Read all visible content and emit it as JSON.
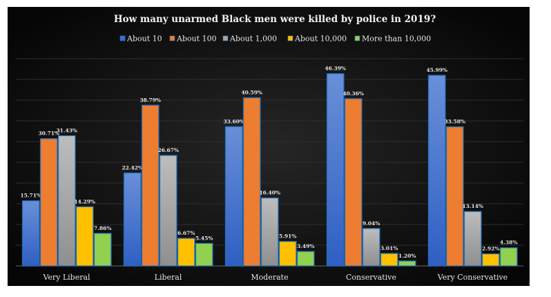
{
  "chart_data": {
    "type": "bar",
    "title": "How many unarmed Black men were killed by police in 2019?",
    "categories": [
      "Very Liberal",
      "Liberal",
      "Moderate",
      "Conservative",
      "Very Conservative"
    ],
    "series": [
      {
        "name": "About 10",
        "color": "#3a6fd0",
        "values": [
          15.71,
          22.42,
          33.6,
          46.39,
          45.99
        ],
        "labels": [
          "15.71%",
          "22.42%",
          "33.60%",
          "46.39%",
          "45.99%"
        ]
      },
      {
        "name": "About 100",
        "color": "#ed7d31",
        "values": [
          30.71,
          38.79,
          40.59,
          40.36,
          33.58
        ],
        "labels": [
          "30.71%",
          "38.79%",
          "40.59%",
          "40.36%",
          "33.58%"
        ]
      },
      {
        "name": "About 1,000",
        "color": "#a5a5a5",
        "values": [
          31.43,
          26.67,
          16.4,
          9.04,
          13.14
        ],
        "labels": [
          "31.43%",
          "26.67%",
          "16.40%",
          "9.04%",
          "13.14%"
        ]
      },
      {
        "name": "About 10,000",
        "color": "#ffc000",
        "values": [
          14.29,
          6.67,
          5.91,
          3.01,
          2.92
        ],
        "labels": [
          "14.29%",
          "6.67%",
          "5.91%",
          "3.01%",
          "2.92%"
        ]
      },
      {
        "name": "More than 10,000",
        "color": "#92d050",
        "values": [
          7.86,
          5.45,
          3.49,
          1.2,
          4.38
        ],
        "labels": [
          "7.86%",
          "5.45%",
          "3.49%",
          "1.20%",
          "4.38%"
        ]
      }
    ],
    "ylim": [
      0,
      50
    ],
    "grid": true,
    "legend": "top",
    "xlabel": "",
    "ylabel": ""
  }
}
